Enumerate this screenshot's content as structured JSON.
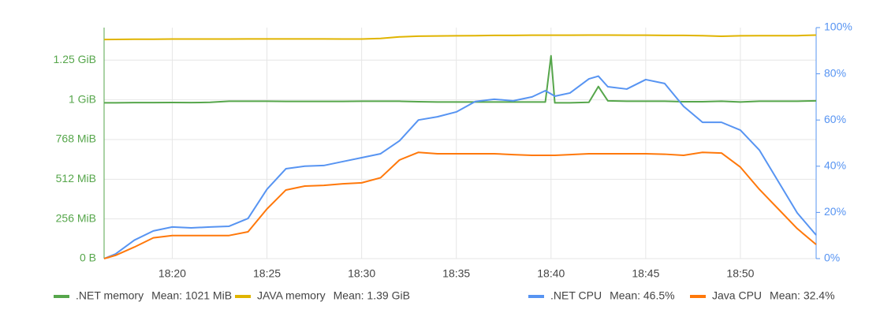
{
  "chart_data": {
    "type": "line",
    "x": [
      16.4,
      17,
      18,
      19,
      20,
      21,
      22,
      23,
      24,
      25,
      26,
      27,
      28,
      29,
      30,
      31,
      32,
      33,
      34,
      35,
      36,
      37,
      38,
      39,
      39.7,
      40,
      40.2,
      41,
      42,
      42.5,
      43,
      44,
      45,
      46,
      47,
      48,
      49,
      50,
      51,
      52,
      53,
      54
    ],
    "xlim": [
      16.4,
      54
    ],
    "xticks": [
      {
        "value": 20,
        "label": "18:20"
      },
      {
        "value": 25,
        "label": "18:25"
      },
      {
        "value": 30,
        "label": "18:30"
      },
      {
        "value": 35,
        "label": "18:35"
      },
      {
        "value": 40,
        "label": "18:40"
      },
      {
        "value": 45,
        "label": "18:45"
      },
      {
        "value": 50,
        "label": "18:50"
      }
    ],
    "ylim": [
      0,
      1490
    ],
    "yticks": [
      {
        "value": 0,
        "label": "0 B"
      },
      {
        "value": 256,
        "label": "256 MiB"
      },
      {
        "value": 512,
        "label": "512 MiB"
      },
      {
        "value": 768,
        "label": "768 MiB"
      },
      {
        "value": 1024,
        "label": "1 GiB"
      },
      {
        "value": 1280,
        "label": "1.25 GiB"
      }
    ],
    "y2lim": [
      0,
      100
    ],
    "y2ticks": [
      {
        "value": 0,
        "label": "0%"
      },
      {
        "value": 20,
        "label": "20%"
      },
      {
        "value": 40,
        "label": "40%"
      },
      {
        "value": 60,
        "label": "60%"
      },
      {
        "value": 80,
        "label": "80%"
      },
      {
        "value": 100,
        "label": "100%"
      }
    ],
    "grid": true,
    "series": [
      {
        "name": ".NET memory",
        "mean_label": "Mean: 1021 MiB",
        "color": "#56a64b",
        "values": [
          1005,
          1005,
          1006,
          1006,
          1007,
          1006,
          1008,
          1015,
          1015,
          1015,
          1014,
          1014,
          1014,
          1014,
          1015,
          1015,
          1015,
          1012,
          1010,
          1010,
          1010,
          1010,
          1010,
          1010,
          1010,
          1308,
          1005,
          1005,
          1008,
          1110,
          1018,
          1015,
          1015,
          1015,
          1012,
          1012,
          1015,
          1010,
          1015,
          1015,
          1015,
          1018
        ]
      },
      {
        "name": "JAVA memory",
        "mean_label": "Mean: 1.39 GiB",
        "color": "#e0b400",
        "values": [
          1413,
          1414,
          1415,
          1415,
          1416,
          1416,
          1416,
          1416,
          1417,
          1417,
          1417,
          1417,
          1417,
          1416,
          1416,
          1420,
          1430,
          1435,
          1436,
          1437,
          1438,
          1440,
          1440,
          1441,
          1441,
          1441,
          1441,
          1441,
          1442,
          1442,
          1442,
          1441,
          1441,
          1440,
          1440,
          1438,
          1434,
          1437,
          1438,
          1438,
          1438,
          1442
        ]
      },
      {
        "name": ".NET CPU",
        "mean_label": "Mean: 46.5%",
        "color": "#5794f2",
        "axis": "y2",
        "values": [
          0,
          2,
          8,
          12,
          13.7,
          13.3,
          13.7,
          14,
          17.4,
          30,
          38.9,
          40,
          40.3,
          42,
          43.7,
          45.4,
          51,
          60,
          61.4,
          63.5,
          68,
          69,
          68.3,
          70,
          72.7,
          71.3,
          70.3,
          71.7,
          77.8,
          79,
          74.4,
          73.4,
          77.5,
          75.8,
          65.9,
          59,
          59,
          55.6,
          47,
          33.4,
          19.8,
          10.2
        ]
      },
      {
        "name": "Java CPU",
        "mean_label": "Mean: 32.4%",
        "color": "#ff780a",
        "axis": "y2",
        "values": [
          0,
          1.4,
          5,
          9,
          10,
          10,
          10,
          10,
          11.6,
          21.5,
          29.7,
          31.4,
          31.7,
          32.4,
          32.8,
          35,
          42.7,
          46,
          45.4,
          45.4,
          45.4,
          45.4,
          45,
          44.7,
          44.7,
          44.7,
          44.7,
          45,
          45.4,
          45.4,
          45.4,
          45.4,
          45.4,
          45.2,
          44.7,
          46,
          45.7,
          39.6,
          30,
          21.5,
          13,
          6.1
        ]
      }
    ]
  }
}
